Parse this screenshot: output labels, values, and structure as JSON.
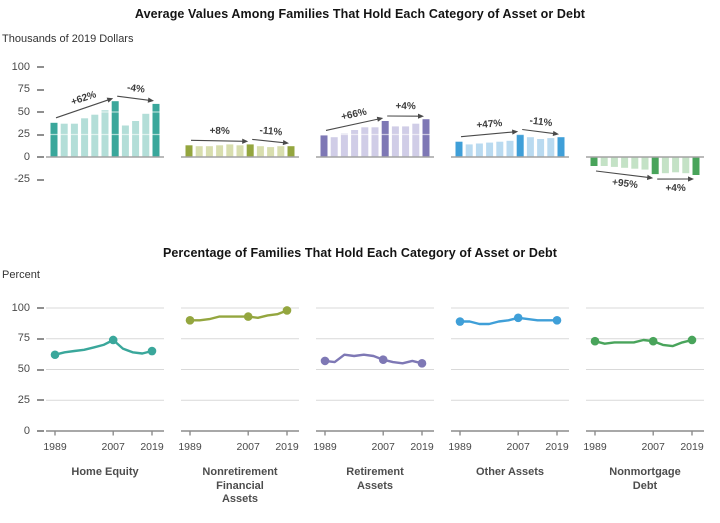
{
  "chart_data": [
    {
      "type": "bar",
      "title": "Average Values Among Families That Hold Each Category of Asset or Debt",
      "ylabel": "Thousands of 2019 Dollars",
      "ylim": [
        -25,
        100
      ],
      "yticks": [
        100,
        75,
        50,
        25,
        0,
        -25
      ],
      "x": [
        1989,
        1992,
        1995,
        1998,
        2001,
        2004,
        2007,
        2010,
        2013,
        2016,
        2019
      ],
      "highlight_years": [
        1989,
        2007,
        2019
      ],
      "grid": false,
      "series": [
        {
          "name": "Home Equity",
          "values": [
            38,
            37,
            37,
            43,
            47,
            52,
            62,
            35,
            40,
            48,
            59
          ],
          "color": "#3aa79b",
          "color_light": "#b3ded8",
          "annotations": [
            "+62%",
            "-4%"
          ]
        },
        {
          "name": "Nonretirement Financial Assets",
          "values": [
            13,
            12,
            12,
            13,
            14,
            13,
            14,
            12,
            11,
            12,
            12
          ],
          "color": "#94a63f",
          "color_light": "#d8deae",
          "annotations": [
            "+8%",
            "-11%"
          ]
        },
        {
          "name": "Retirement Assets",
          "values": [
            24,
            22,
            26,
            30,
            33,
            33,
            40,
            34,
            34,
            37,
            42
          ],
          "color": "#7e78b5",
          "color_light": "#d0cde7",
          "annotations": [
            "+66%",
            "+4%"
          ]
        },
        {
          "name": "Other Assets",
          "values": [
            17,
            14,
            15,
            16,
            17,
            18,
            25,
            22,
            20,
            21,
            22
          ],
          "color": "#3f9fd8",
          "color_light": "#b9daf0",
          "annotations": [
            "+47%",
            "-11%"
          ]
        },
        {
          "name": "Nonmortgage Debt",
          "values": [
            -10,
            -10,
            -11,
            -12,
            -13,
            -14,
            -19,
            -18,
            -17,
            -18,
            -20
          ],
          "color": "#49a45b",
          "color_light": "#c4e2c6",
          "annotations": [
            "+95%",
            "+4%"
          ]
        }
      ]
    },
    {
      "type": "line",
      "title": "Percentage of Families That Hold Each Category of Asset or Debt",
      "ylabel": "Percent",
      "ylim": [
        0,
        100
      ],
      "yticks": [
        100,
        75,
        50,
        25,
        0
      ],
      "x": [
        1989,
        1992,
        1995,
        1998,
        2001,
        2004,
        2007,
        2010,
        2013,
        2016,
        2019
      ],
      "xtick_labels": [
        "1989",
        "2007",
        "2019"
      ],
      "marker_years": [
        1989,
        2007,
        2019
      ],
      "grid": true,
      "legend_position": "none",
      "series": [
        {
          "name": "Home Equity",
          "label_lines": [
            "Home Equity"
          ],
          "values": [
            62,
            64,
            65,
            66,
            68,
            70,
            74,
            67,
            64,
            63,
            65
          ],
          "color": "#3aa79b"
        },
        {
          "name": "Nonretirement Financial Assets",
          "label_lines": [
            "Nonretirement",
            "Financial",
            "Assets"
          ],
          "values": [
            90,
            90,
            91,
            93,
            93,
            93,
            93,
            92,
            94,
            95,
            98
          ],
          "color": "#94a63f"
        },
        {
          "name": "Retirement Assets",
          "label_lines": [
            "Retirement",
            "Assets"
          ],
          "values": [
            57,
            56,
            62,
            61,
            62,
            61,
            58,
            56,
            55,
            57,
            55
          ],
          "color": "#7e78b5"
        },
        {
          "name": "Other Assets",
          "label_lines": [
            "Other Assets"
          ],
          "values": [
            89,
            89,
            87,
            87,
            89,
            90,
            92,
            91,
            90,
            90,
            90
          ],
          "color": "#3f9fd8"
        },
        {
          "name": "Nonmortgage Debt",
          "label_lines": [
            "Nonmortgage",
            "Debt"
          ],
          "values": [
            73,
            71,
            72,
            72,
            72,
            74,
            73,
            70,
            69,
            72,
            74
          ],
          "color": "#49a45b"
        }
      ]
    }
  ]
}
